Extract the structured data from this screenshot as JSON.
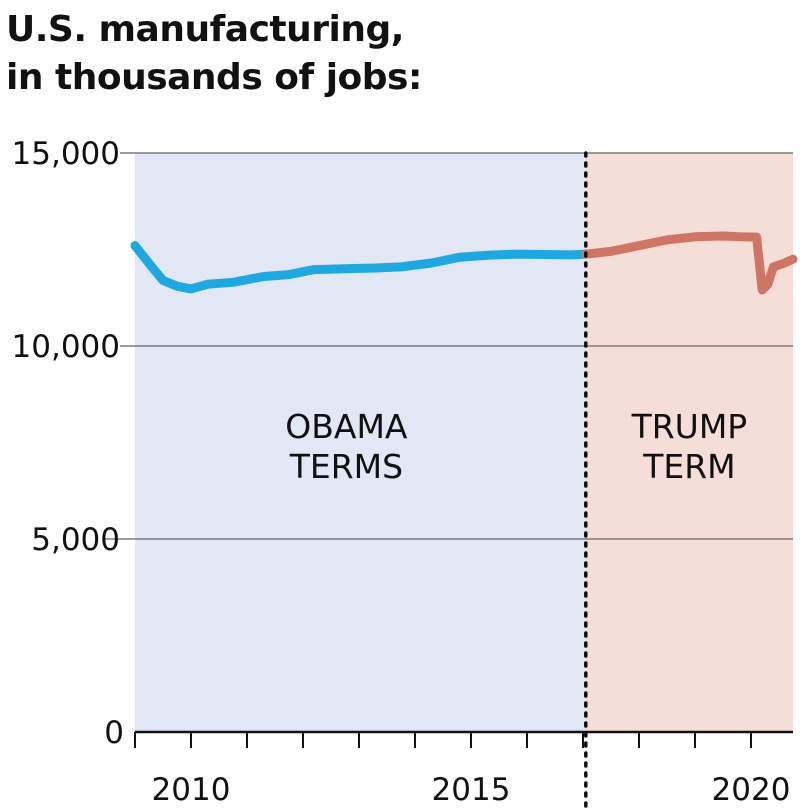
{
  "title_lines": [
    "U.S. manufacturing,",
    "in thousands of jobs:"
  ],
  "chart_data": {
    "type": "line",
    "title": "U.S. manufacturing, in thousands of jobs:",
    "xlabel": "",
    "ylabel": "",
    "xlim": [
      2009.0,
      2020.75
    ],
    "ylim": [
      0,
      15000
    ],
    "y_ticks": [
      {
        "value": 0,
        "label": "0"
      },
      {
        "value": 5000,
        "label": "5,000"
      },
      {
        "value": 10000,
        "label": "10,000"
      },
      {
        "value": 15000,
        "label": "15,000"
      }
    ],
    "x_ticks": [
      {
        "value": 2010,
        "label": "2010"
      },
      {
        "value": 2015,
        "label": "2015"
      },
      {
        "value": 2020,
        "label": "2020"
      }
    ],
    "x_minor_ticks": [
      2009,
      2010,
      2011,
      2012,
      2013,
      2014,
      2015,
      2016,
      2017,
      2018,
      2019,
      2020
    ],
    "grid": true,
    "divider_x": 2017.05,
    "regions": [
      {
        "label_lines": [
          "OBAMA",
          "TERMS"
        ],
        "x_start": 2009.0,
        "x_end": 2017.05,
        "color": "#e1e7f4"
      },
      {
        "label_lines": [
          "TRUMP",
          "TERM"
        ],
        "x_start": 2017.05,
        "x_end": 2020.75,
        "color": "#f5ded8"
      }
    ],
    "series": [
      {
        "color": "#1fa8e0",
        "points": [
          [
            2009.0,
            12600
          ],
          [
            2009.3,
            12050
          ],
          [
            2009.5,
            11700
          ],
          [
            2009.75,
            11550
          ],
          [
            2010.0,
            11480
          ],
          [
            2010.3,
            11600
          ],
          [
            2010.75,
            11650
          ],
          [
            2011.3,
            11800
          ],
          [
            2011.75,
            11850
          ],
          [
            2012.2,
            11980
          ],
          [
            2012.75,
            12000
          ],
          [
            2013.3,
            12020
          ],
          [
            2013.75,
            12050
          ],
          [
            2014.3,
            12150
          ],
          [
            2014.8,
            12300
          ],
          [
            2015.3,
            12350
          ],
          [
            2015.8,
            12380
          ],
          [
            2016.3,
            12370
          ],
          [
            2016.8,
            12360
          ],
          [
            2017.05,
            12380
          ]
        ]
      },
      {
        "color": "#cf7566",
        "points": [
          [
            2017.05,
            12380
          ],
          [
            2017.5,
            12450
          ],
          [
            2018.0,
            12600
          ],
          [
            2018.5,
            12750
          ],
          [
            2019.0,
            12830
          ],
          [
            2019.5,
            12850
          ],
          [
            2019.8,
            12830
          ],
          [
            2020.1,
            12820
          ],
          [
            2020.2,
            11450
          ],
          [
            2020.3,
            11600
          ],
          [
            2020.4,
            12050
          ],
          [
            2020.6,
            12150
          ],
          [
            2020.75,
            12250
          ]
        ]
      }
    ]
  }
}
